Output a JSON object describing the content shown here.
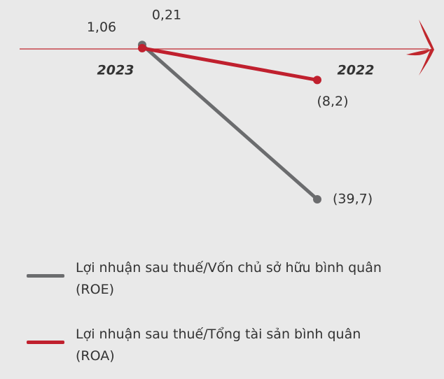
{
  "chart_data": {
    "type": "line",
    "categories": [
      "2023",
      "2022"
    ],
    "series": [
      {
        "name": "Lợi nhuận sau thuế/Vốn chủ sở hữu bình quân (ROE)",
        "color": "#6b6c6e",
        "values": [
          1.06,
          -39.7
        ],
        "value_labels": [
          "1,06",
          "(39,7)"
        ]
      },
      {
        "name": "Lợi nhuận sau thuế/Tổng tài sản bình quân (ROA)",
        "color": "#c0202e",
        "values": [
          0.21,
          -8.2
        ],
        "value_labels": [
          "0,21",
          "(8,2)"
        ]
      }
    ]
  }
}
